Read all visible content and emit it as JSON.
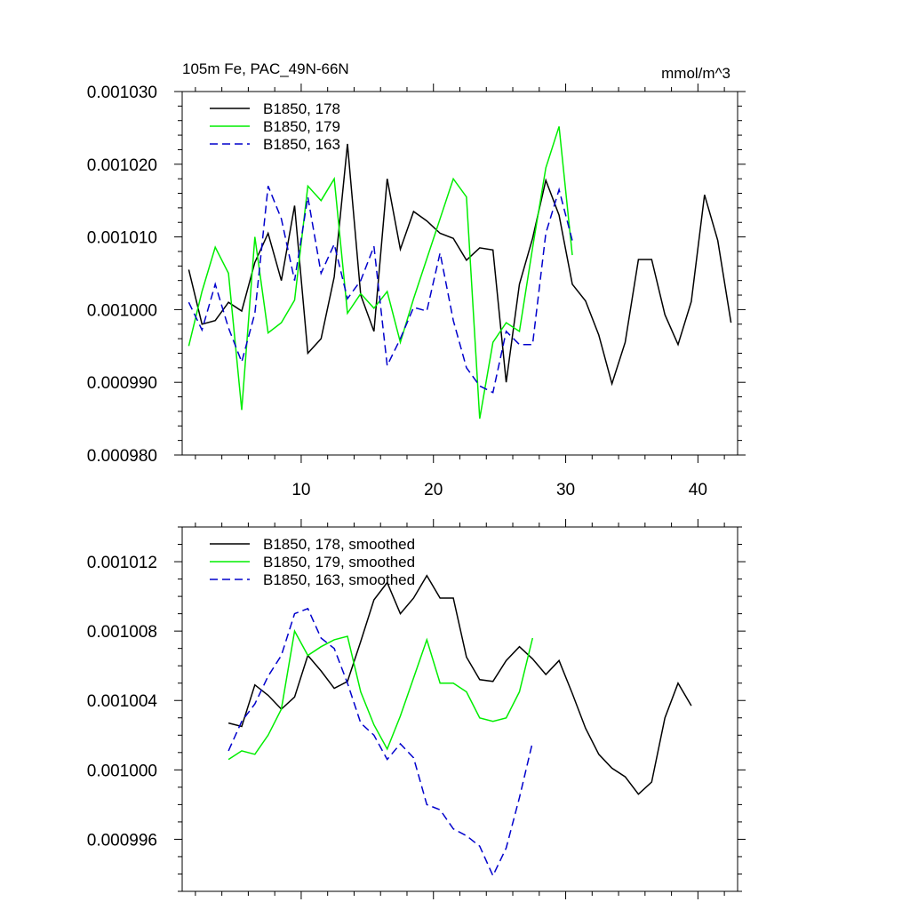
{
  "chart_data": [
    {
      "type": "line",
      "title": "105m Fe, PAC_49N-66N",
      "units": "mmol/m^3",
      "xlabel": "",
      "ylabel": "",
      "xlim": [
        1,
        43
      ],
      "ylim": [
        0.00098,
        0.00103
      ],
      "xticks": [
        10,
        20,
        30,
        40
      ],
      "xtick_labels": [
        "10",
        "20",
        "30",
        "40"
      ],
      "yticks": [
        0.00098,
        0.00099,
        0.001,
        0.00101,
        0.00102,
        0.00103
      ],
      "ytick_labels": [
        "0.000980",
        "0.000990",
        "0.001000",
        "0.001010",
        "0.001020",
        "0.001030"
      ],
      "legend_position": "top-left",
      "grid": false,
      "series": [
        {
          "name": "B1850, 178",
          "color": "#000000",
          "dash": "solid",
          "x": [
            1.5,
            2.5,
            3.5,
            4.5,
            5.5,
            6.5,
            7.5,
            8.5,
            9.5,
            10.5,
            11.5,
            12.5,
            13.5,
            14.5,
            15.5,
            16.5,
            17.5,
            18.5,
            19.5,
            20.5,
            21.5,
            22.5,
            23.5,
            24.5,
            25.5,
            26.5,
            27.5,
            28.5,
            29.5,
            30.5,
            31.5,
            32.5,
            33.5,
            34.5,
            35.5,
            36.5,
            37.5,
            38.5,
            39.5,
            40.5,
            41.5,
            42.5
          ],
          "y": [
            0.0010055,
            0.000998,
            0.0009985,
            0.001001,
            0.0009998,
            0.0010065,
            0.0010105,
            0.001004,
            0.0010143,
            0.000994,
            0.000996,
            0.0010045,
            0.0010228,
            0.001002,
            0.000997,
            0.001018,
            0.0010083,
            0.0010135,
            0.0010122,
            0.0010105,
            0.0010098,
            0.0010068,
            0.0010085,
            0.0010082,
            0.00099,
            0.0010035,
            0.0010098,
            0.0010178,
            0.001013,
            0.0010035,
            0.0010012,
            0.0009965,
            0.0009898,
            0.0009955,
            0.0010069,
            0.0010069,
            0.0009993,
            0.0009952,
            0.0010011,
            0.0010158,
            0.0010095,
            0.0009982
          ]
        },
        {
          "name": "B1850, 179",
          "color": "#00ee00",
          "dash": "solid",
          "x": [
            1.5,
            2.5,
            3.5,
            4.5,
            5.5,
            6.5,
            7.5,
            8.5,
            9.5,
            10.5,
            11.5,
            12.5,
            13.5,
            14.5,
            15.5,
            16.5,
            17.5,
            18.5,
            19.5,
            20.5,
            21.5,
            22.5,
            23.5,
            24.5,
            25.5,
            26.5,
            27.5,
            28.5,
            29.5,
            30.5
          ],
          "y": [
            0.000995,
            0.0010025,
            0.0010086,
            0.001005,
            0.0009862,
            0.00101,
            0.0009968,
            0.0009982,
            0.0010013,
            0.001017,
            0.001015,
            0.001018,
            0.0009995,
            0.0010022,
            0.0010002,
            0.0010025,
            0.0009955,
            0.0010015,
            0.001007,
            0.0010125,
            0.001018,
            0.0010155,
            0.000985,
            0.0009955,
            0.0009982,
            0.000997,
            0.0010085,
            0.0010195,
            0.0010252,
            0.0010075
          ]
        },
        {
          "name": "B1850, 163",
          "color": "#0000cc",
          "dash": "dashed",
          "x": [
            1.5,
            2.5,
            3.5,
            4.5,
            5.5,
            6.5,
            7.5,
            8.5,
            9.5,
            10.5,
            11.5,
            12.5,
            13.5,
            14.5,
            15.5,
            16.5,
            17.5,
            18.5,
            19.5,
            20.5,
            21.5,
            22.5,
            23.5,
            24.5,
            25.5,
            26.5,
            27.5,
            28.5,
            29.5,
            30.5
          ],
          "y": [
            0.001001,
            0.0009972,
            0.0010035,
            0.0009975,
            0.0009928,
            0.0009995,
            0.001017,
            0.0010125,
            0.001004,
            0.0010155,
            0.001005,
            0.001009,
            0.0010015,
            0.001004,
            0.0010087,
            0.0009923,
            0.000996,
            0.0010003,
            0.0009998,
            0.0010078,
            0.0009985,
            0.000992,
            0.0009895,
            0.0009886,
            0.000997,
            0.0009952,
            0.0009952,
            0.0010105,
            0.0010165,
            0.0010095
          ]
        }
      ]
    },
    {
      "type": "line",
      "title": "",
      "xlabel": "",
      "ylabel": "",
      "xlim": [
        1,
        43
      ],
      "ylim": [
        0.000993,
        0.001014
      ],
      "xticks": [
        10,
        20,
        30,
        40
      ],
      "xtick_labels": [],
      "yticks": [
        0.000996,
        0.001,
        0.001004,
        0.001008,
        0.001012
      ],
      "ytick_labels": [
        "0.000996",
        "0.001000",
        "0.001004",
        "0.001008",
        "0.001012"
      ],
      "legend_position": "top-left",
      "grid": false,
      "series": [
        {
          "name": "B1850, 178, smoothed",
          "color": "#000000",
          "dash": "solid",
          "x": [
            4.5,
            5.5,
            6.5,
            7.5,
            8.5,
            9.5,
            10.5,
            11.5,
            12.5,
            13.5,
            14.5,
            15.5,
            16.5,
            17.5,
            18.5,
            19.5,
            20.5,
            21.5,
            22.5,
            23.5,
            24.5,
            25.5,
            26.5,
            27.5,
            28.5,
            29.5,
            30.5,
            31.5,
            32.5,
            33.5,
            34.5,
            35.5,
            36.5,
            37.5,
            38.5,
            39.5
          ],
          "y": [
            0.0010027,
            0.0010025,
            0.0010049,
            0.0010043,
            0.0010035,
            0.0010042,
            0.0010066,
            0.0010057,
            0.0010047,
            0.0010051,
            0.0010074,
            0.0010098,
            0.0010108,
            0.001009,
            0.0010099,
            0.0010112,
            0.0010099,
            0.0010099,
            0.0010065,
            0.0010052,
            0.0010051,
            0.0010063,
            0.0010071,
            0.0010064,
            0.0010055,
            0.0010063,
            0.0010044,
            0.0010024,
            0.0010009,
            0.0010001,
            0.0009996,
            0.0009986,
            0.0009993,
            0.001003,
            0.001005,
            0.0010037
          ]
        },
        {
          "name": "B1850, 179, smoothed",
          "color": "#00ee00",
          "dash": "solid",
          "x": [
            4.5,
            5.5,
            6.5,
            7.5,
            8.5,
            9.5,
            10.5,
            11.5,
            12.5,
            13.5,
            14.5,
            15.5,
            16.5,
            17.5,
            18.5,
            19.5,
            20.5,
            21.5,
            22.5,
            23.5,
            24.5,
            25.5,
            26.5,
            27.5
          ],
          "y": [
            0.0010006,
            0.0010011,
            0.0010009,
            0.001002,
            0.0010035,
            0.001008,
            0.0010066,
            0.0010071,
            0.0010075,
            0.0010077,
            0.0010045,
            0.0010026,
            0.0010012,
            0.0010031,
            0.0010053,
            0.0010075,
            0.001005,
            0.001005,
            0.0010045,
            0.001003,
            0.0010028,
            0.001003,
            0.0010045,
            0.0010076
          ]
        },
        {
          "name": "B1850, 163, smoothed",
          "color": "#0000cc",
          "dash": "dashed",
          "x": [
            4.5,
            5.5,
            6.5,
            7.5,
            8.5,
            9.5,
            10.5,
            11.5,
            12.5,
            13.5,
            14.5,
            15.5,
            16.5,
            17.5,
            18.5,
            19.5,
            20.5,
            21.5,
            22.5,
            23.5,
            24.5,
            25.5,
            26.5,
            27.5
          ],
          "y": [
            0.0010011,
            0.0010028,
            0.0010038,
            0.0010054,
            0.0010066,
            0.001009,
            0.0010093,
            0.0010076,
            0.001007,
            0.001005,
            0.0010027,
            0.001002,
            0.0010006,
            0.0010015,
            0.0010007,
            0.000998,
            0.0009977,
            0.0009966,
            0.0009962,
            0.0009956,
            0.0009939,
            0.0009955,
            0.0009984,
            0.0010016
          ]
        }
      ]
    }
  ]
}
